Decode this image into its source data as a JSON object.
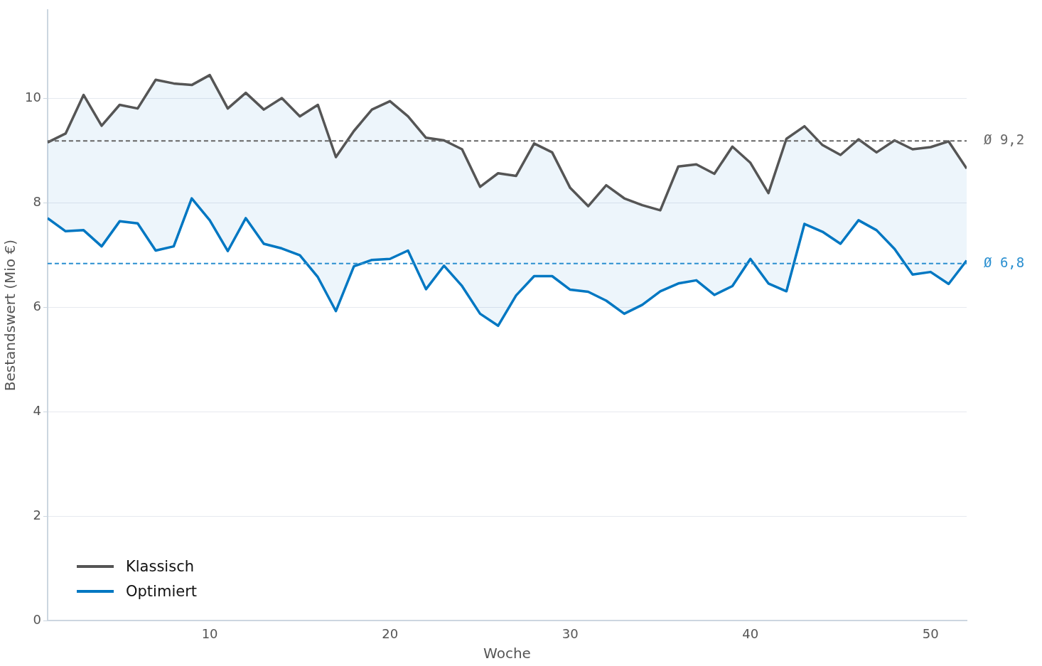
{
  "chart_data": {
    "type": "line",
    "xlabel": "Woche",
    "ylabel": "Bestandswert (Mio €)",
    "x": [
      1,
      2,
      3,
      4,
      5,
      6,
      7,
      8,
      9,
      10,
      11,
      12,
      13,
      14,
      15,
      16,
      17,
      18,
      19,
      20,
      21,
      22,
      23,
      24,
      25,
      26,
      27,
      28,
      29,
      30,
      31,
      32,
      33,
      34,
      35,
      36,
      37,
      38,
      39,
      40,
      41,
      42,
      43,
      44,
      45,
      46,
      47,
      48,
      49,
      50,
      51,
      52
    ],
    "series": [
      {
        "name": "Klassisch",
        "color": "#555555",
        "values": [
          9.16,
          9.33,
          10.07,
          9.48,
          9.88,
          9.81,
          10.36,
          10.29,
          10.26,
          10.45,
          9.81,
          10.11,
          9.79,
          10.01,
          9.66,
          9.88,
          8.88,
          9.38,
          9.79,
          9.95,
          9.66,
          9.25,
          9.2,
          9.03,
          8.31,
          8.57,
          8.52,
          9.14,
          8.97,
          8.29,
          7.94,
          8.34,
          8.09,
          7.96,
          7.86,
          8.7,
          8.74,
          8.56,
          9.08,
          8.77,
          8.19,
          9.23,
          9.47,
          9.11,
          8.92,
          9.22,
          8.97,
          9.2,
          9.03,
          9.07,
          9.18,
          8.66
        ],
        "lower": [
          7.71,
          7.46,
          7.48,
          7.17,
          7.65,
          7.61,
          7.09,
          7.17,
          8.09,
          7.67,
          7.08,
          7.71,
          7.22,
          7.13,
          7.0,
          6.58,
          5.93,
          6.79,
          6.91,
          6.93,
          7.09,
          6.35,
          6.8,
          6.41,
          5.88,
          5.65,
          6.23,
          6.6,
          6.6,
          6.34,
          6.3,
          6.13,
          5.88,
          6.05,
          6.31,
          6.46,
          6.52,
          6.24,
          6.41,
          6.93,
          6.46,
          6.31,
          7.6,
          7.45,
          7.22,
          7.67,
          7.48,
          7.12,
          6.63,
          6.68,
          6.45,
          6.9
        ],
        "upper": [
          9.16,
          9.33,
          10.07,
          9.48,
          9.88,
          9.81,
          10.36,
          10.29,
          10.26,
          10.45,
          9.81,
          10.11,
          9.79,
          10.01,
          9.66,
          9.88,
          8.88,
          9.38,
          9.79,
          9.95,
          9.66,
          9.25,
          9.2,
          9.03,
          8.31,
          8.57,
          8.52,
          9.14,
          8.97,
          8.29,
          7.94,
          8.34,
          8.09,
          7.96,
          7.86,
          8.7,
          8.74,
          8.56,
          9.08,
          8.77,
          8.19,
          9.23,
          9.47,
          9.11,
          8.92,
          9.22,
          8.97,
          9.2,
          9.03,
          9.07,
          9.18,
          8.66
        ]
      },
      {
        "name": "Optimiert",
        "color": "#0077c2",
        "values": [
          7.71,
          7.46,
          7.48,
          7.17,
          7.65,
          7.61,
          7.09,
          7.17,
          8.09,
          7.67,
          7.08,
          7.71,
          7.22,
          7.13,
          7.0,
          6.58,
          5.93,
          6.79,
          6.91,
          6.93,
          7.09,
          6.35,
          6.8,
          6.41,
          5.88,
          5.65,
          6.23,
          6.6,
          6.6,
          6.34,
          6.3,
          6.13,
          5.88,
          6.05,
          6.31,
          6.46,
          6.52,
          6.24,
          6.41,
          6.93,
          6.46,
          6.31,
          7.6,
          7.45,
          7.22,
          7.67,
          7.48,
          7.12,
          6.63,
          6.68,
          6.45,
          6.9
        ]
      }
    ],
    "xlim": [
      1,
      52
    ],
    "xticks": [
      10,
      20,
      30,
      40,
      50
    ],
    "ylim": [
      0,
      11.7
    ],
    "yticks": [
      0,
      2,
      4,
      6,
      8,
      10
    ],
    "ref_lines": [
      {
        "axis": "y",
        "value": 9.19,
        "label": "Ø 9,2",
        "color": "#666666",
        "line_style": "dashed"
      },
      {
        "axis": "y",
        "value": 6.84,
        "label": "Ø 6,8",
        "color": "#2a8fd0",
        "line_style": "dashed"
      }
    ],
    "grid": "y",
    "legend": "bottom left",
    "marker": "none",
    "line_style": "solid"
  }
}
